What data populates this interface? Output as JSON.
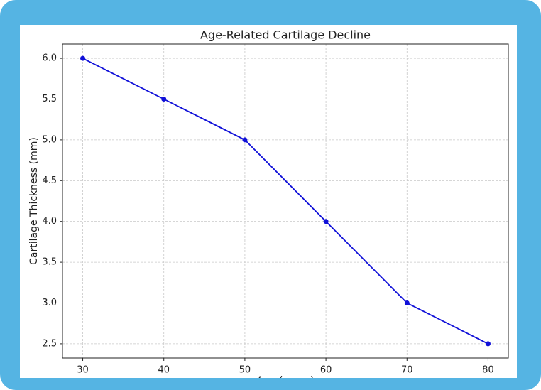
{
  "chart_data": {
    "type": "line",
    "title": "Age-Related Cartilage Decline",
    "x_label": "Age (years)",
    "y_label": "Cartilage Thickness (mm)",
    "x": [
      30,
      40,
      50,
      60,
      70,
      80
    ],
    "series": [
      {
        "name": "Cartilage Thickness",
        "color": "#1010d8",
        "values": [
          6.0,
          5.5,
          5.0,
          4.0,
          3.0,
          2.5
        ]
      }
    ],
    "xlim": [
      27.5,
      82.5
    ],
    "xticks": [
      30,
      40,
      50,
      60,
      70,
      80
    ],
    "ylim": [
      2.325,
      6.175
    ],
    "yticks": [
      {
        "value": 2.5,
        "label": "2.5"
      },
      {
        "value": 3,
        "label": "3.0"
      },
      {
        "value": 3.5,
        "label": "3.5"
      },
      {
        "value": 4,
        "label": "4.0"
      },
      {
        "value": 4.5,
        "label": "4.5"
      },
      {
        "value": 5,
        "label": "5.0"
      },
      {
        "value": 5.5,
        "label": "5.5"
      },
      {
        "value": 6,
        "label": "6.0"
      }
    ],
    "grid": true
  }
}
